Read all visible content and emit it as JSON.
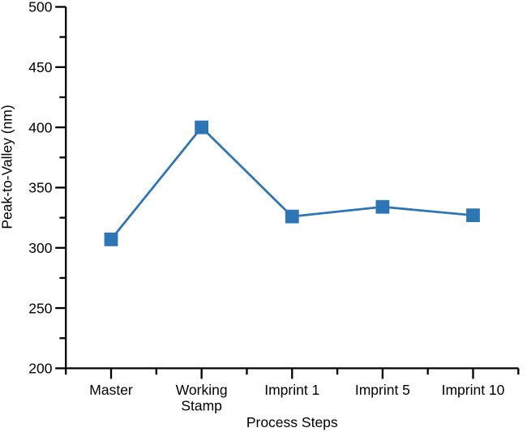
{
  "chart_data": {
    "type": "line",
    "title": "",
    "categories": [
      "Master",
      "Working Stamp",
      "Imprint 1",
      "Imprint 5",
      "Imprint 10"
    ],
    "series": [
      {
        "name": "Peak-to-Valley",
        "values": [
          307,
          400,
          326,
          334,
          327
        ]
      }
    ],
    "xlabel": "Process Steps",
    "ylabel": "Peak-to-Valley (nm)",
    "ylim": [
      200,
      500
    ],
    "yticks": [
      200,
      250,
      300,
      350,
      400,
      450,
      500
    ],
    "ytick_step": 50,
    "ytick_minor_step": 25,
    "grid": false,
    "legend_position": "none",
    "marker": "square",
    "line_color": "#2E75B6",
    "marker_color": "#2E75B6",
    "axis_color": "#000000",
    "text_color": "#000000",
    "background_color": "#FFFFFF"
  }
}
